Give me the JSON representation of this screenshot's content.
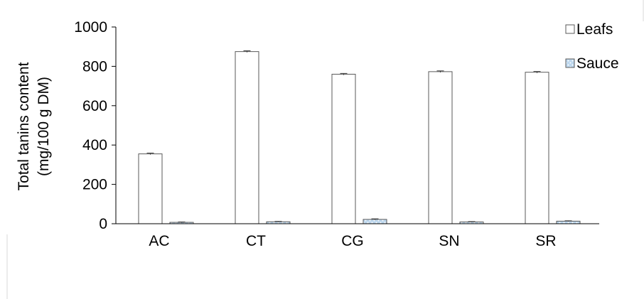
{
  "chart_data": {
    "type": "bar",
    "categories": [
      "AC",
      "CT",
      "CG",
      "SN",
      "SR"
    ],
    "series": [
      {
        "name": "Leafs",
        "values": [
          355,
          875,
          760,
          773,
          770
        ],
        "errors": [
          4,
          4,
          4,
          4,
          4
        ],
        "color": "#ffffff",
        "stroke": "#595959"
      },
      {
        "name": "Sauce",
        "values": [
          7,
          10,
          22,
          9,
          13
        ],
        "errors": [
          2,
          2,
          3,
          2,
          2
        ],
        "color": "#bdd7ee",
        "stroke": "#595959",
        "pattern": "dotted"
      }
    ],
    "ylabel_line1": "Total tanins content",
    "ylabel_line2": "(mg/100 g DM)",
    "ylim": [
      0,
      1000
    ],
    "yticks": [
      "0",
      "200",
      "400",
      "600",
      "800",
      "1000"
    ],
    "grid": false,
    "legend_position": "top-right"
  }
}
